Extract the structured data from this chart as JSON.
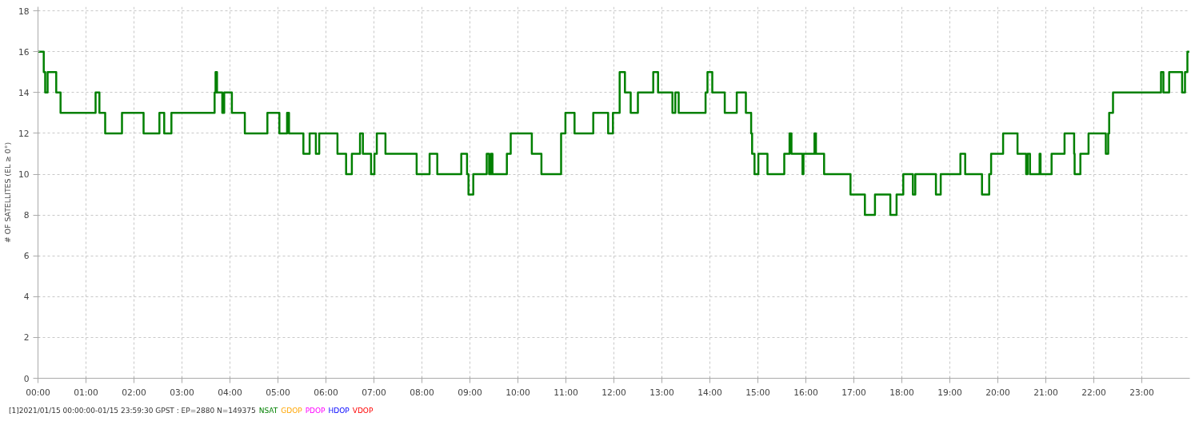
{
  "chart_data": {
    "type": "step",
    "ylabel": "# OF SATELLITES (EL ≥ 0°)",
    "x": [
      0.0,
      0.12,
      0.15,
      0.2,
      0.38,
      0.47,
      1.2,
      1.28,
      1.4,
      1.75,
      2.2,
      2.53,
      2.63,
      2.78,
      3.68,
      3.7,
      3.73,
      3.84,
      3.88,
      4.04,
      4.31,
      4.78,
      5.03,
      5.19,
      5.23,
      5.53,
      5.66,
      5.79,
      5.86,
      6.24,
      6.42,
      6.54,
      6.71,
      6.77,
      6.94,
      7.01,
      7.06,
      7.24,
      7.89,
      8.16,
      8.32,
      8.82,
      8.94,
      8.97,
      9.07,
      9.35,
      9.4,
      9.44,
      9.47,
      9.77,
      9.85,
      10.29,
      10.49,
      10.9,
      10.99,
      11.18,
      11.57,
      11.88,
      11.98,
      12.12,
      12.23,
      12.35,
      12.5,
      12.82,
      12.92,
      13.22,
      13.28,
      13.35,
      13.91,
      13.95,
      14.05,
      14.31,
      14.56,
      14.75,
      14.86,
      14.88,
      14.93,
      15.01,
      15.2,
      15.55,
      15.66,
      15.7,
      15.93,
      15.95,
      16.18,
      16.21,
      16.38,
      16.93,
      17.23,
      17.44,
      17.76,
      17.89,
      18.03,
      18.23,
      18.28,
      18.71,
      18.81,
      19.22,
      19.32,
      19.67,
      19.82,
      19.86,
      20.11,
      20.41,
      20.59,
      20.62,
      20.67,
      20.87,
      20.89,
      21.12,
      21.39,
      21.59,
      21.6,
      21.72,
      21.89,
      22.25,
      22.3,
      22.32,
      22.4,
      23.4,
      23.45,
      23.57,
      23.84,
      23.9,
      23.95,
      23.99
    ],
    "series": [
      {
        "name": "NSAT",
        "color": "#008000",
        "values": [
          16,
          15,
          14,
          15,
          14,
          13,
          14,
          13,
          12,
          13,
          12,
          13,
          12,
          13,
          14,
          15,
          14,
          13,
          14,
          13,
          12,
          13,
          12,
          13,
          12,
          11,
          12,
          11,
          12,
          11,
          10,
          11,
          12,
          11,
          10,
          11,
          12,
          11,
          10,
          11,
          10,
          11,
          10,
          9,
          10,
          11,
          10,
          11,
          10,
          11,
          12,
          11,
          10,
          12,
          13,
          12,
          13,
          12,
          13,
          15,
          14,
          13,
          14,
          15,
          14,
          13,
          14,
          13,
          14,
          15,
          14,
          13,
          14,
          13,
          12,
          11,
          10,
          11,
          10,
          11,
          12,
          11,
          10,
          11,
          12,
          11,
          10,
          9,
          8,
          9,
          8,
          9,
          10,
          9,
          10,
          9,
          10,
          11,
          10,
          9,
          10,
          11,
          12,
          11,
          10,
          11,
          10,
          11,
          10,
          11,
          12,
          11,
          10,
          11,
          12,
          11,
          12,
          13,
          14,
          15,
          14,
          15,
          14,
          15,
          16,
          16
        ]
      }
    ],
    "xlim": [
      0,
      24
    ],
    "ylim": [
      0,
      18.2
    ],
    "xticks": [
      {
        "value": 0,
        "label": "00:00"
      },
      {
        "value": 1,
        "label": "01:00"
      },
      {
        "value": 2,
        "label": "02:00"
      },
      {
        "value": 3,
        "label": "03:00"
      },
      {
        "value": 4,
        "label": "04:00"
      },
      {
        "value": 5,
        "label": "05:00"
      },
      {
        "value": 6,
        "label": "06:00"
      },
      {
        "value": 7,
        "label": "07:00"
      },
      {
        "value": 8,
        "label": "08:00"
      },
      {
        "value": 9,
        "label": "09:00"
      },
      {
        "value": 10,
        "label": "10:00"
      },
      {
        "value": 11,
        "label": "11:00"
      },
      {
        "value": 12,
        "label": "12:00"
      },
      {
        "value": 13,
        "label": "13:00"
      },
      {
        "value": 14,
        "label": "14:00"
      },
      {
        "value": 15,
        "label": "15:00"
      },
      {
        "value": 16,
        "label": "16:00"
      },
      {
        "value": 17,
        "label": "17:00"
      },
      {
        "value": 18,
        "label": "18:00"
      },
      {
        "value": 19,
        "label": "19:00"
      },
      {
        "value": 20,
        "label": "20:00"
      },
      {
        "value": 21,
        "label": "21:00"
      },
      {
        "value": 22,
        "label": "22:00"
      },
      {
        "value": 23,
        "label": "23:00"
      }
    ],
    "yticks": [
      0,
      2,
      4,
      6,
      8,
      10,
      12,
      14,
      16,
      18
    ],
    "grid": true,
    "line_style": "solid",
    "annotations": [
      "[1]2021/01/15 00:00:00-01/15 23:59:30 GPST : EP=2880 N=149375",
      "GDOP",
      "PDOP",
      "HDOP",
      "VDOP"
    ]
  }
}
